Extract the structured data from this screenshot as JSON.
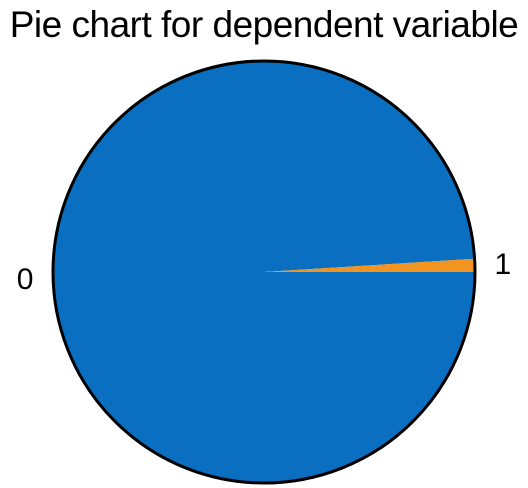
{
  "chart_data": {
    "type": "pie",
    "title": "Pie chart for dependent variable",
    "categories": [
      "0",
      "1"
    ],
    "values": [
      99.0,
      1.0
    ],
    "colors": [
      "#0b6fc1",
      "#f29422"
    ],
    "start_angle_deg": 0,
    "direction": "clockwise",
    "legend": "none"
  }
}
